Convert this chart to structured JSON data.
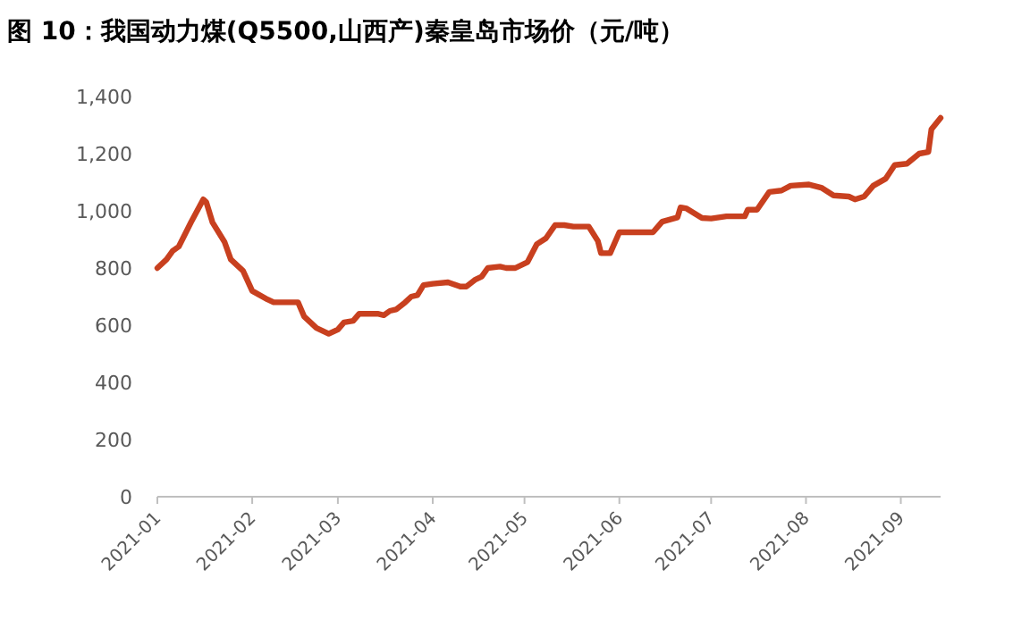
{
  "chart_data": {
    "type": "line",
    "title": "图 10：我国动力煤(Q5500,山西产)秦皇岛市场价（元/吨）",
    "xlim": [
      "2021-01-01",
      "2021-09-14"
    ],
    "xticks": [
      {
        "value": "2021-01-01",
        "label": "2021-01"
      },
      {
        "value": "2021-02-01",
        "label": "2021-02"
      },
      {
        "value": "2021-03-01",
        "label": "2021-03"
      },
      {
        "value": "2021-04-01",
        "label": "2021-04"
      },
      {
        "value": "2021-05-01",
        "label": "2021-05"
      },
      {
        "value": "2021-06-01",
        "label": "2021-06"
      },
      {
        "value": "2021-07-01",
        "label": "2021-07"
      },
      {
        "value": "2021-08-01",
        "label": "2021-08"
      },
      {
        "value": "2021-09-01",
        "label": "2021-09"
      }
    ],
    "ylim": [
      0,
      1400
    ],
    "yticks": [
      {
        "value": 0,
        "label": "0"
      },
      {
        "value": 200,
        "label": "200"
      },
      {
        "value": 400,
        "label": "400"
      },
      {
        "value": 600,
        "label": "600"
      },
      {
        "value": 800,
        "label": "800"
      },
      {
        "value": 1000,
        "label": "1,000"
      },
      {
        "value": 1200,
        "label": "1,200"
      },
      {
        "value": 1400,
        "label": "1,400"
      }
    ],
    "grid": false,
    "marker": "none",
    "line_style": "solid",
    "series": [
      {
        "color": "#c8401f",
        "x": [
          "2021-01-01",
          "2021-01-04",
          "2021-01-06",
          "2021-01-08",
          "2021-01-12",
          "2021-01-14",
          "2021-01-16",
          "2021-01-17",
          "2021-01-19",
          "2021-01-23",
          "2021-01-25",
          "2021-01-29",
          "2021-02-01",
          "2021-02-06",
          "2021-02-08",
          "2021-02-16",
          "2021-02-18",
          "2021-02-22",
          "2021-02-26",
          "2021-03-01",
          "2021-03-03",
          "2021-03-06",
          "2021-03-08",
          "2021-03-14",
          "2021-03-16",
          "2021-03-18",
          "2021-03-20",
          "2021-03-23",
          "2021-03-25",
          "2021-03-27",
          "2021-03-29",
          "2021-04-01",
          "2021-04-06",
          "2021-04-10",
          "2021-04-12",
          "2021-04-15",
          "2021-04-17",
          "2021-04-19",
          "2021-04-23",
          "2021-04-25",
          "2021-04-28",
          "2021-05-02",
          "2021-05-05",
          "2021-05-08",
          "2021-05-11",
          "2021-05-14",
          "2021-05-17",
          "2021-05-22",
          "2021-05-25",
          "2021-05-26",
          "2021-05-29",
          "2021-06-01",
          "2021-06-12",
          "2021-06-15",
          "2021-06-20",
          "2021-06-21",
          "2021-06-23",
          "2021-06-28",
          "2021-07-01",
          "2021-07-06",
          "2021-07-12",
          "2021-07-13",
          "2021-07-16",
          "2021-07-20",
          "2021-07-24",
          "2021-07-27",
          "2021-08-02",
          "2021-08-06",
          "2021-08-10",
          "2021-08-15",
          "2021-08-17",
          "2021-08-20",
          "2021-08-23",
          "2021-08-27",
          "2021-08-30",
          "2021-09-03",
          "2021-09-07",
          "2021-09-10",
          "2021-09-11",
          "2021-09-14"
        ],
        "values": [
          800,
          830,
          860,
          875,
          960,
          1000,
          1040,
          1030,
          960,
          890,
          830,
          790,
          720,
          690,
          680,
          680,
          630,
          590,
          570,
          585,
          610,
          615,
          640,
          640,
          635,
          650,
          655,
          680,
          700,
          705,
          740,
          745,
          750,
          735,
          735,
          760,
          770,
          800,
          805,
          800,
          800,
          821,
          883,
          904,
          950,
          950,
          945,
          945,
          894,
          852,
          852,
          925,
          925,
          962,
          977,
          1012,
          1008,
          975,
          973,
          981,
          981,
          1004,
          1004,
          1066,
          1071,
          1088,
          1092,
          1081,
          1054,
          1050,
          1040,
          1050,
          1088,
          1112,
          1160,
          1165,
          1200,
          1206,
          1285,
          1325
        ]
      }
    ]
  }
}
